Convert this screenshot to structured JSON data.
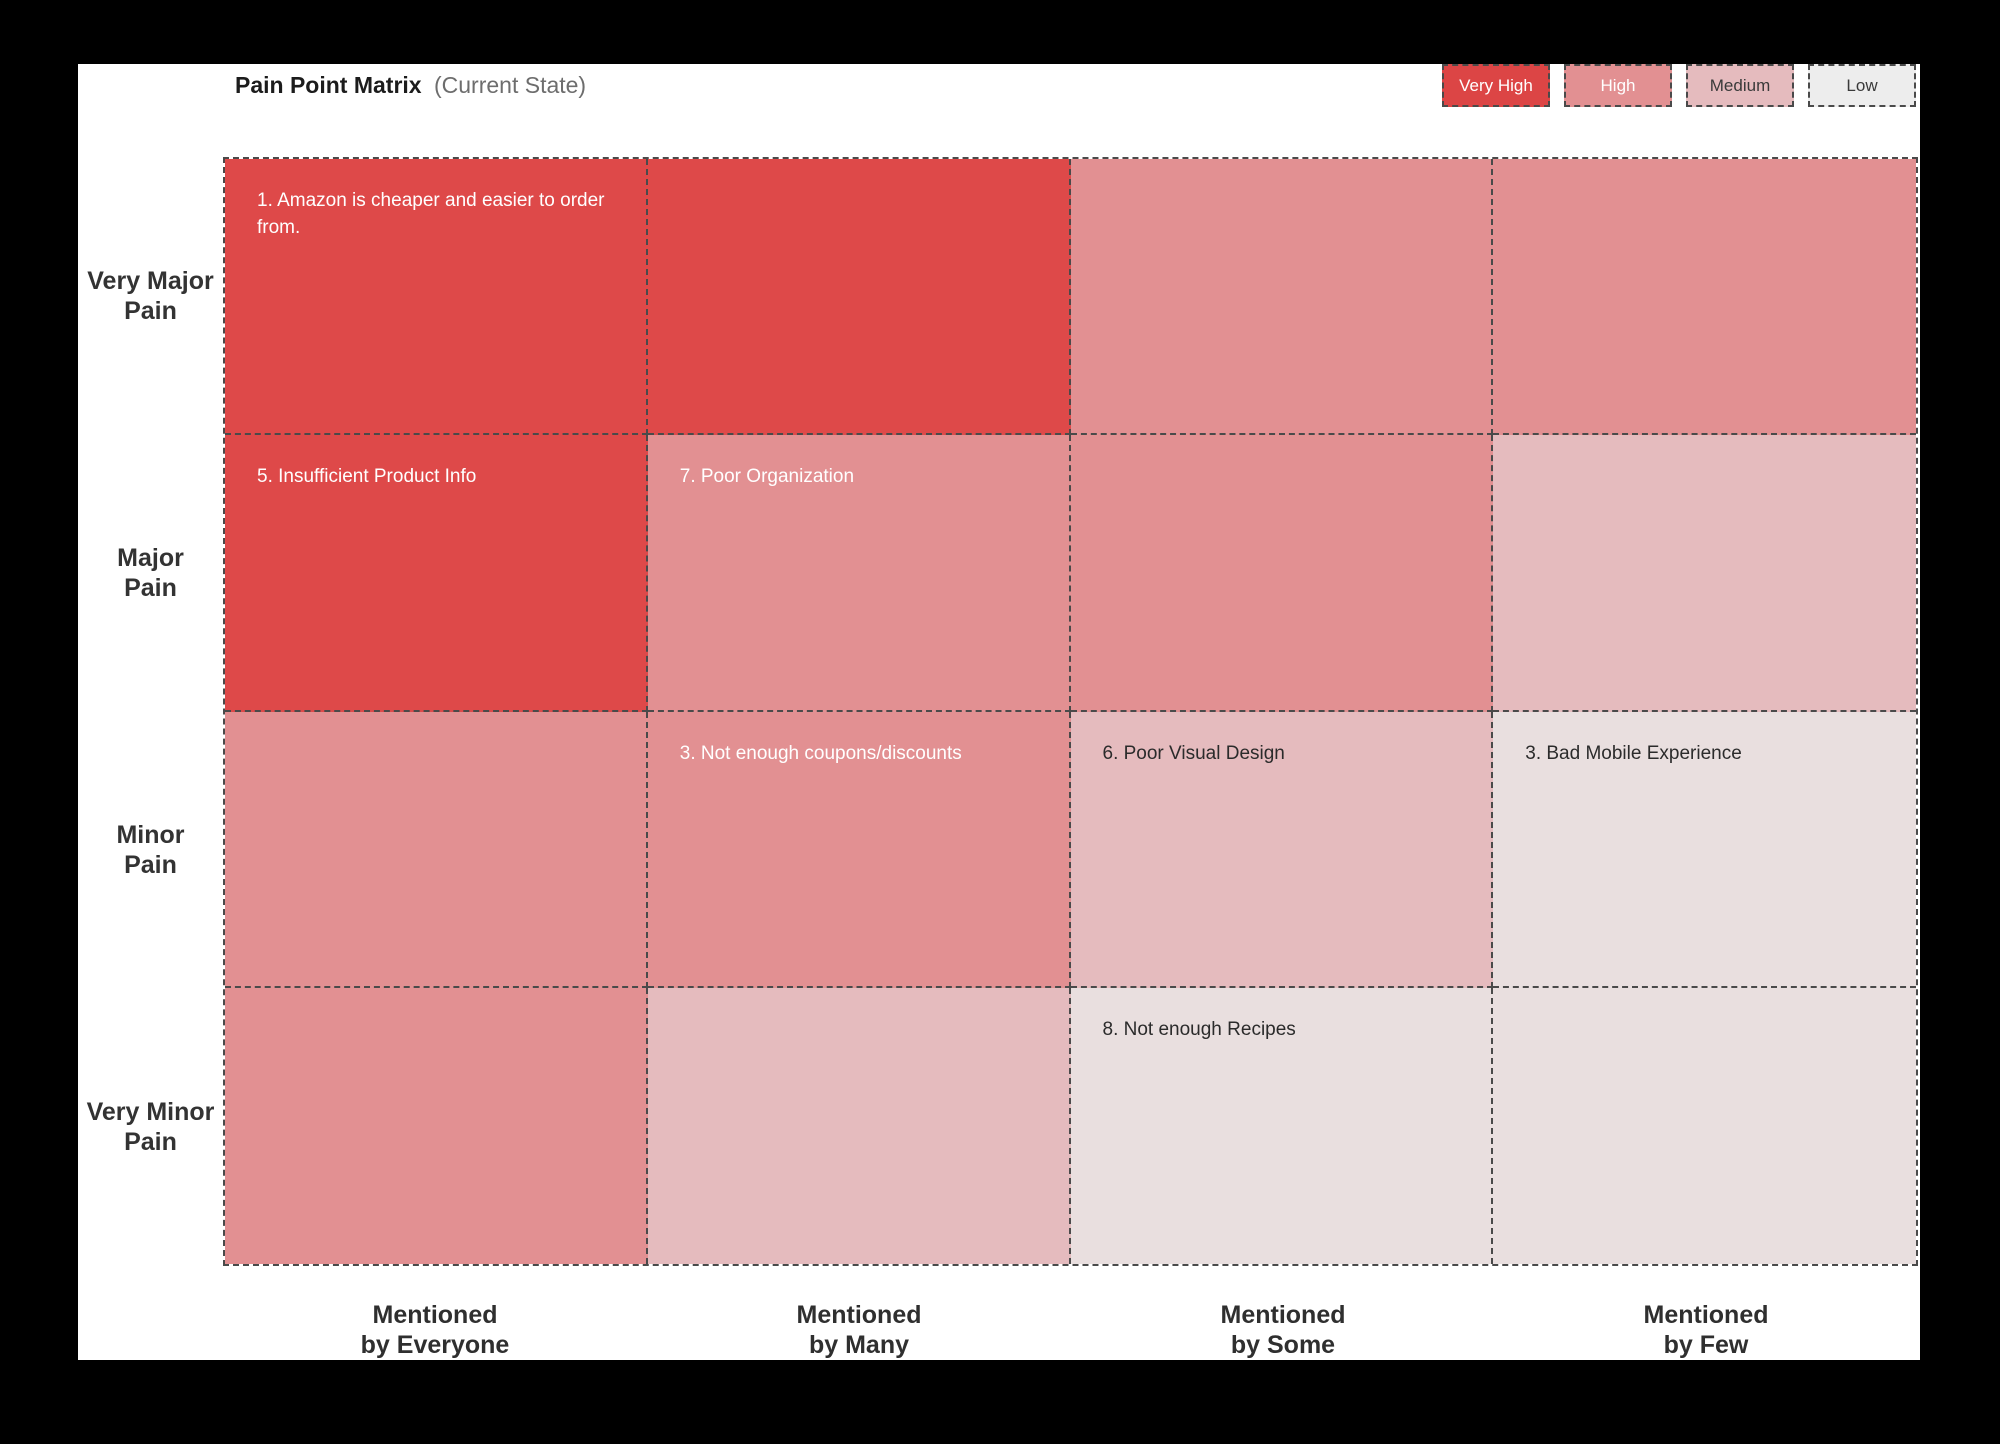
{
  "title": {
    "main": "Pain Point Matrix",
    "suffix": "(Current State)"
  },
  "legend": {
    "items": [
      {
        "label": "Very High",
        "bg": "#DC4545",
        "color": "#FFFFFF"
      },
      {
        "label": "High",
        "bg": "#E29092",
        "color": "#FFFFFF"
      },
      {
        "label": "Medium",
        "bg": "#E5BBBE",
        "color": "#3A3A3A"
      },
      {
        "label": "Low",
        "bg": "#EDEDED",
        "color": "#3A3A3A"
      }
    ]
  },
  "matrix": {
    "severity_colors": {
      "very_high": "#DE4949",
      "high": "#E29092",
      "medium": "#E5BBBE",
      "low": "#E9DFDF"
    },
    "row_labels": [
      {
        "line1": "Very Major",
        "line2": "Pain"
      },
      {
        "line1": "Major",
        "line2": "Pain"
      },
      {
        "line1": "Minor",
        "line2": "Pain"
      },
      {
        "line1": "Very Minor",
        "line2": "Pain"
      }
    ],
    "col_labels": [
      {
        "line1": "Mentioned",
        "line2": "by Everyone"
      },
      {
        "line1": "Mentioned",
        "line2": "by Many"
      },
      {
        "line1": "Mentioned",
        "line2": "by Some"
      },
      {
        "line1": "Mentioned",
        "line2": "by Few"
      }
    ],
    "cells": [
      [
        {
          "severity": "very_high",
          "text": "1. Amazon is cheaper and easier to order from.",
          "color": "#FFFFFF"
        },
        {
          "severity": "very_high",
          "text": "",
          "color": "#FFFFFF"
        },
        {
          "severity": "high",
          "text": "",
          "color": "#FFFFFF"
        },
        {
          "severity": "high",
          "text": "",
          "color": "#FFFFFF"
        }
      ],
      [
        {
          "severity": "very_high",
          "text": "5. Insufficient Product Info",
          "color": "#FFFFFF"
        },
        {
          "severity": "high",
          "text": "7. Poor Organization",
          "color": "#FFFFFF"
        },
        {
          "severity": "high",
          "text": "",
          "color": "#FFFFFF"
        },
        {
          "severity": "medium",
          "text": "",
          "color": "#2B2B2B"
        }
      ],
      [
        {
          "severity": "high",
          "text": "",
          "color": "#FFFFFF"
        },
        {
          "severity": "high",
          "text": "3. Not enough coupons/discounts",
          "color": "#FFFFFF"
        },
        {
          "severity": "medium",
          "text": "6. Poor Visual Design",
          "color": "#2B2B2B"
        },
        {
          "severity": "low",
          "text": "3. Bad Mobile Experience",
          "color": "#2B2B2B"
        }
      ],
      [
        {
          "severity": "high",
          "text": "",
          "color": "#FFFFFF"
        },
        {
          "severity": "medium",
          "text": "",
          "color": "#2B2B2B"
        },
        {
          "severity": "low",
          "text": "8. Not enough Recipes",
          "color": "#2B2B2B"
        },
        {
          "severity": "low",
          "text": "",
          "color": "#2B2B2B"
        }
      ]
    ]
  },
  "chart_data": {
    "type": "heatmap",
    "title": "Pain Point Matrix (Current State)",
    "x_categories": [
      "Mentioned by Everyone",
      "Mentioned by Many",
      "Mentioned by Some",
      "Mentioned by Few"
    ],
    "y_categories": [
      "Very Major Pain",
      "Major Pain",
      "Minor Pain",
      "Very Minor Pain"
    ],
    "legend_entries": [
      "Very High",
      "High",
      "Medium",
      "Low"
    ],
    "legend_position": "top-right",
    "grid": "dashed",
    "cell_severities": [
      [
        "Very High",
        "Very High",
        "High",
        "High"
      ],
      [
        "Very High",
        "High",
        "High",
        "Medium"
      ],
      [
        "High",
        "High",
        "Medium",
        "Low"
      ],
      [
        "High",
        "Medium",
        "Low",
        "Low"
      ]
    ],
    "annotations": [
      {
        "row": 0,
        "col": 0,
        "text": "1. Amazon is cheaper and easier to order from."
      },
      {
        "row": 1,
        "col": 0,
        "text": "5. Insufficient Product Info"
      },
      {
        "row": 1,
        "col": 1,
        "text": "7. Poor Organization"
      },
      {
        "row": 2,
        "col": 1,
        "text": "3. Not enough coupons/discounts"
      },
      {
        "row": 2,
        "col": 2,
        "text": "6. Poor Visual Design"
      },
      {
        "row": 2,
        "col": 3,
        "text": "3. Bad Mobile Experience"
      },
      {
        "row": 3,
        "col": 2,
        "text": "8. Not enough Recipes"
      }
    ]
  }
}
